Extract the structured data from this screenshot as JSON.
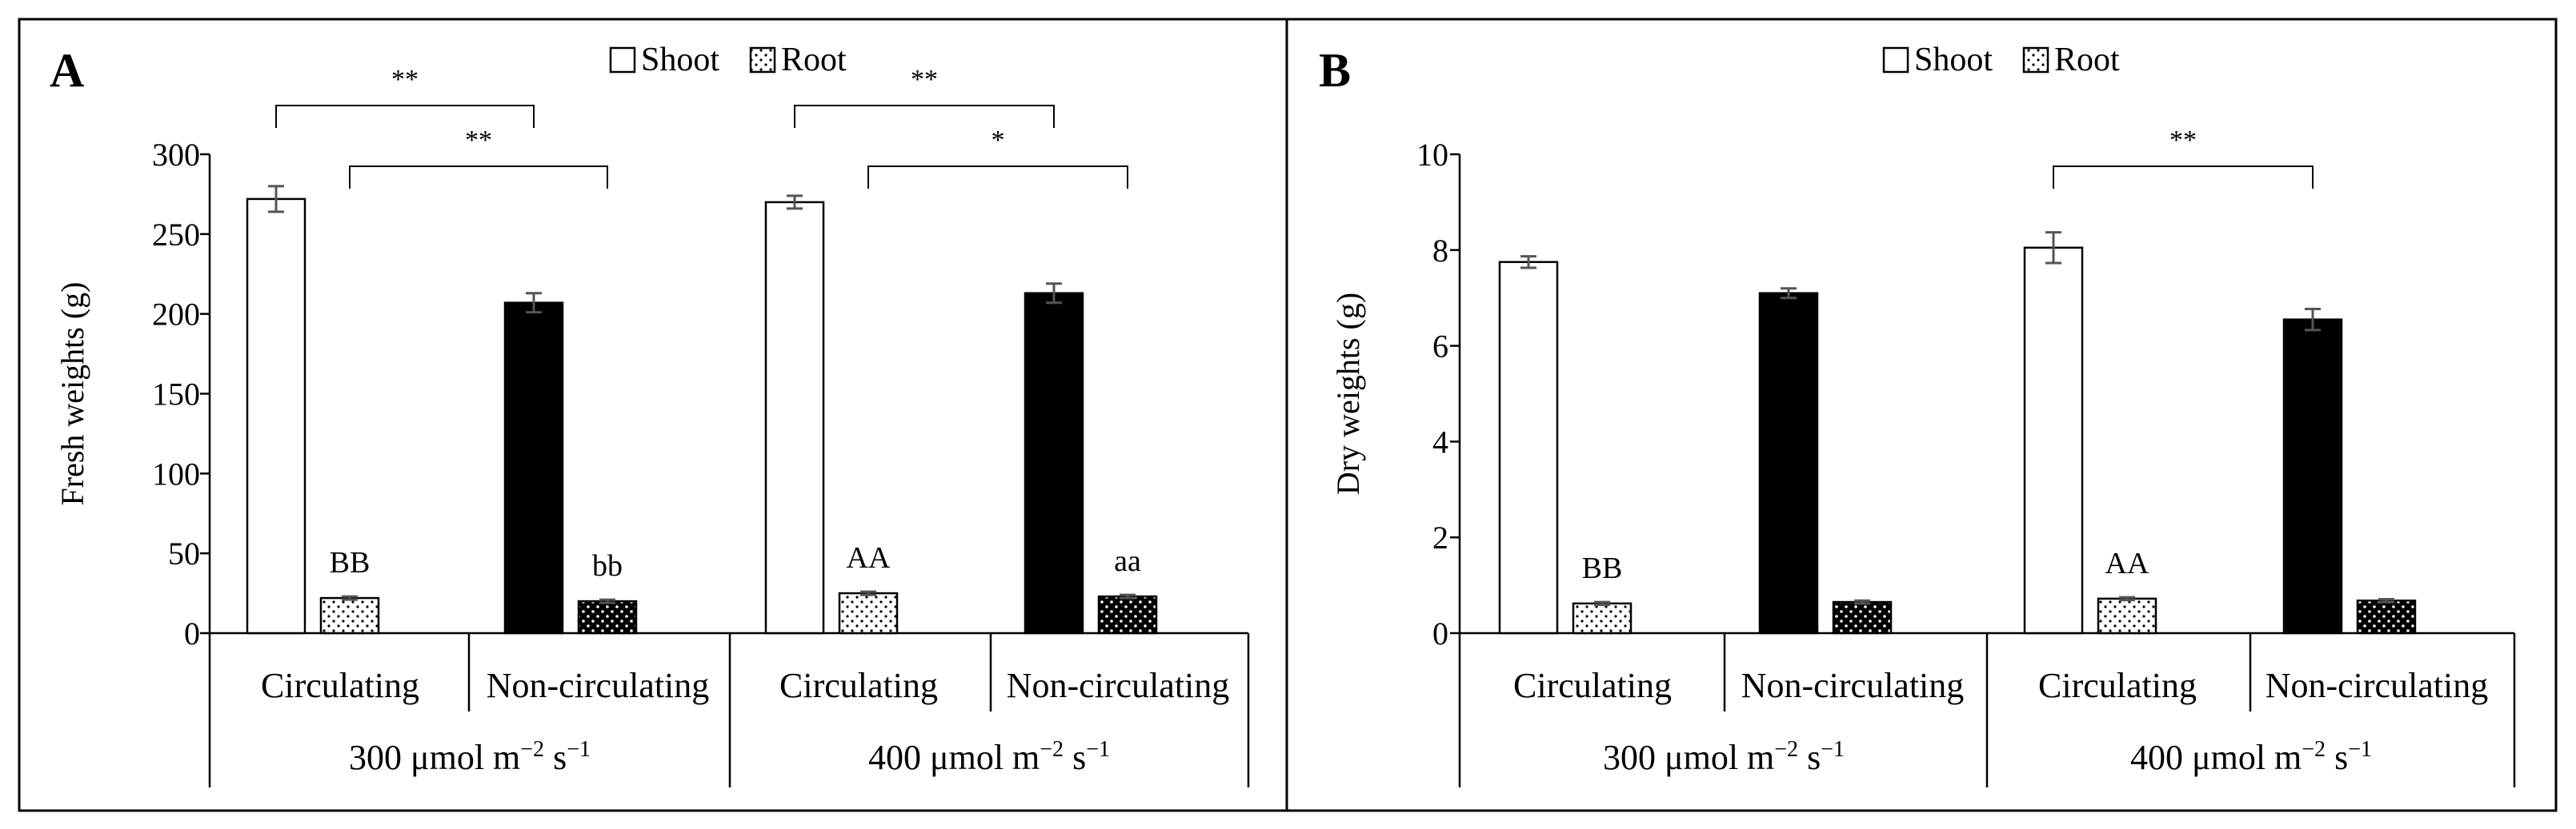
{
  "chart_data": [
    {
      "panel": "A",
      "type": "bar",
      "ylabel": "Fresh weights (g)",
      "ylim": [
        0,
        300
      ],
      "yticks": [
        "0",
        "50",
        "100",
        "150",
        "200",
        "250",
        "300"
      ],
      "legend": [
        "Shoot",
        "Root"
      ],
      "categories": [
        "Circulating",
        "Non-circulating",
        "Circulating",
        "Non-circulating"
      ],
      "groups": [
        "300 μmol m",
        "400 μmol m"
      ],
      "group_unit_sup1": "−2",
      "group_unit_mid": " s",
      "group_unit_sup2": "−1",
      "series": [
        {
          "name": "Shoot",
          "values": [
            272,
            207,
            270,
            213
          ],
          "errors": [
            8,
            6,
            4,
            6
          ]
        },
        {
          "name": "Root",
          "values": [
            22,
            20,
            25,
            23
          ],
          "errors": [
            1,
            1,
            1,
            1
          ]
        }
      ],
      "root_labels": [
        "BB",
        "bb",
        "AA",
        "aa"
      ],
      "significance": [
        {
          "from": "Shoot, Circulating 300",
          "to": "Shoot, Non-circulating 300",
          "text": "**"
        },
        {
          "from": "Root, Circulating 300",
          "to": "Root, Non-circulating 300",
          "text": "**"
        },
        {
          "from": "Shoot, Circulating 400",
          "to": "Shoot, Non-circulating 400",
          "text": "**"
        },
        {
          "from": "Root, Circulating 400",
          "to": "Root, Non-circulating 400",
          "text": "*"
        }
      ]
    },
    {
      "panel": "B",
      "type": "bar",
      "ylabel": "Dry weights (g)",
      "ylim": [
        0,
        10
      ],
      "yticks": [
        "0",
        "2",
        "4",
        "6",
        "8",
        "10"
      ],
      "legend": [
        "Shoot",
        "Root"
      ],
      "categories": [
        "Circulating",
        "Non-circulating",
        "Circulating",
        "Non-circulating"
      ],
      "groups": [
        "300 μmol m",
        "400 μmol m"
      ],
      "group_unit_sup1": "−2",
      "group_unit_mid": " s",
      "group_unit_sup2": "−1",
      "series": [
        {
          "name": "Shoot",
          "values": [
            7.75,
            7.1,
            8.05,
            6.55
          ],
          "errors": [
            0.12,
            0.1,
            0.32,
            0.22
          ]
        },
        {
          "name": "Root",
          "values": [
            0.62,
            0.65,
            0.72,
            0.68
          ],
          "errors": [
            0.03,
            0.03,
            0.03,
            0.03
          ]
        }
      ],
      "root_labels": [
        "BB",
        "",
        "AA",
        ""
      ],
      "significance": [
        {
          "from": "Shoot, Circulating 400",
          "to": "Shoot, Non-circulating 400",
          "text": "**"
        }
      ]
    }
  ]
}
